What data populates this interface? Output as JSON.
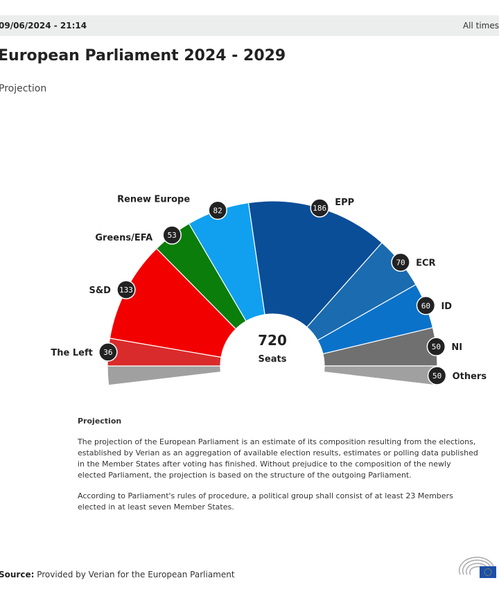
{
  "header": {
    "timestamp": "09/06/2024 - 21:14",
    "timezone_note": "All times"
  },
  "title": "European Parliament 2024 - 2029",
  "subtitle": "Projection",
  "chart_data": {
    "type": "pie",
    "subtype": "parliament-semicircle",
    "total": "720",
    "total_label": "Seats",
    "series": [
      {
        "name": "The Left",
        "value": 36,
        "color": "#d92b2b"
      },
      {
        "name": "S&D",
        "value": 133,
        "color": "#f20000"
      },
      {
        "name": "Greens/EFA",
        "value": 53,
        "color": "#0a7d0a"
      },
      {
        "name": "Renew Europe",
        "value": 82,
        "color": "#10a0ef"
      },
      {
        "name": "EPP",
        "value": 186,
        "color": "#0a4e97"
      },
      {
        "name": "ECR",
        "value": 70,
        "color": "#1a6bb0"
      },
      {
        "name": "ID",
        "value": 60,
        "color": "#0b72c9"
      },
      {
        "name": "NI",
        "value": 50,
        "color": "#707070"
      },
      {
        "name": "Others",
        "value": 50,
        "color": "#a0a0a0"
      }
    ]
  },
  "note": {
    "heading": "Projection",
    "p1": "The projection of the European Parliament is an estimate of its composition resulting from the elections, established by Verian as an aggregation of available election results, estimates or polling data published in the Member States after voting has finished. Without prejudice to the composition of the newly elected Parliament, the projection is based on the structure of the outgoing Parliament.",
    "p2": "According to Parliament's rules of procedure, a political group shall consist of at least 23 Members elected in at least seven Member States."
  },
  "source": {
    "label": "Source:",
    "text": "Provided by Verian for the European Parliament"
  }
}
